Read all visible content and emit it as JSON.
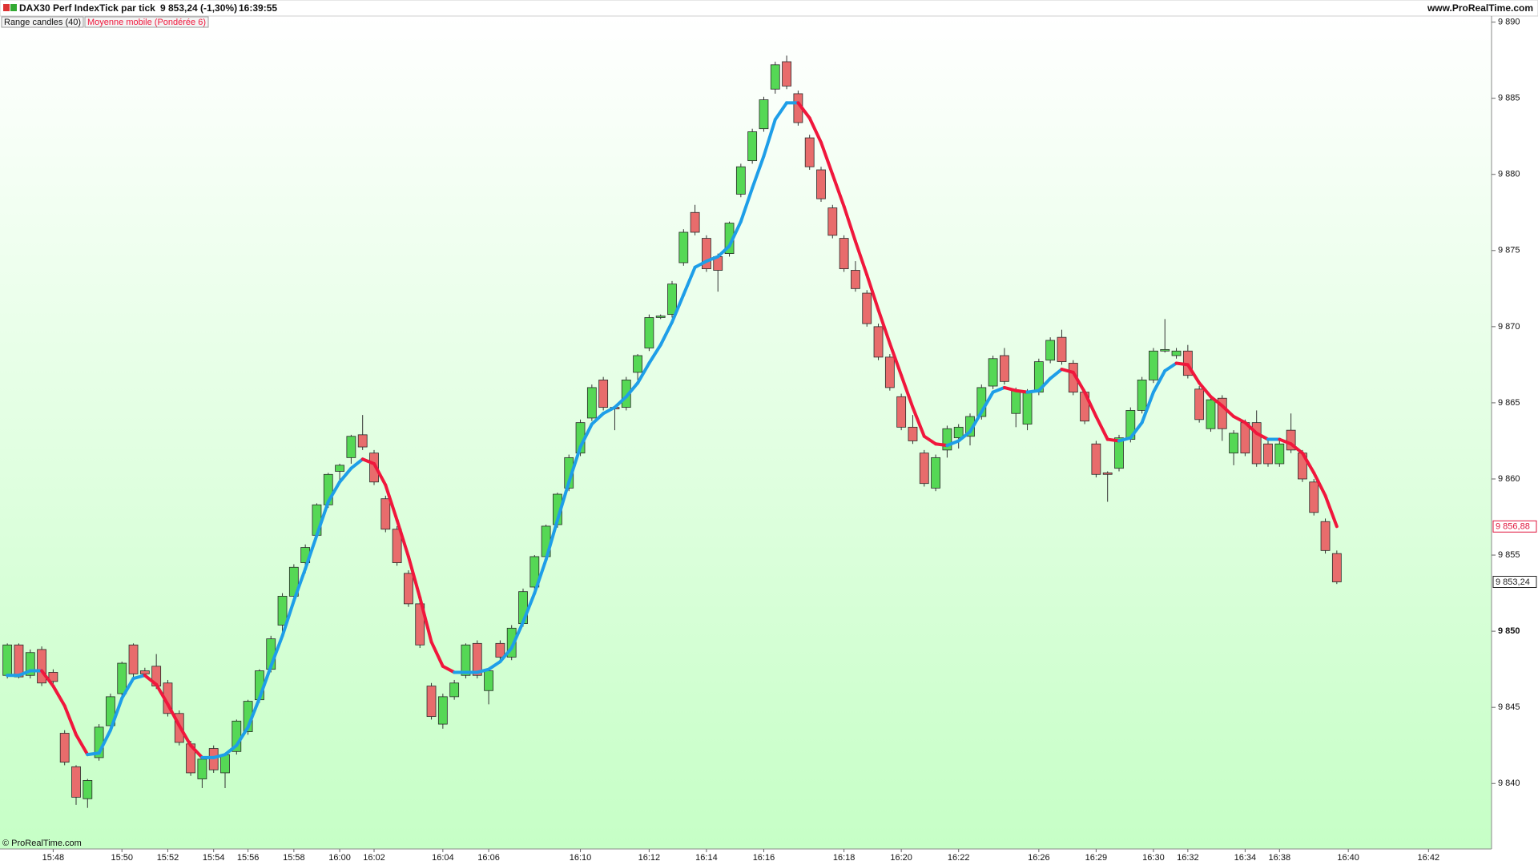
{
  "chart_data": {
    "type": "candlestick",
    "title": "DAX30 Perf Index",
    "subtitle": "Tick par tick",
    "quote": "9 853,24 (-1,30%)",
    "time": "16:39:55",
    "source": "www.ProRealTime.com",
    "copyright": "© ProRealTime.com",
    "categories": [
      null,
      null,
      null,
      null,
      "15:48",
      null,
      null,
      null,
      null,
      null,
      "15:50",
      null,
      null,
      null,
      "15:52",
      null,
      null,
      null,
      "15:54",
      null,
      null,
      "15:56",
      null,
      null,
      null,
      "15:58",
      null,
      null,
      null,
      "16:00",
      null,
      null,
      "16:02",
      null,
      null,
      null,
      null,
      null,
      "16:04",
      null,
      null,
      null,
      "16:06",
      null,
      null,
      null,
      null,
      null,
      null,
      null,
      "16:10",
      null,
      null,
      null,
      null,
      null,
      "16:12",
      null,
      null,
      null,
      null,
      "16:14",
      null,
      null,
      null,
      null,
      "16:16",
      null,
      null,
      null,
      null,
      null,
      null,
      "16:18",
      null,
      null,
      null,
      null,
      "16:20",
      null,
      null,
      null,
      null,
      "16:22",
      null,
      null,
      null,
      null,
      null,
      null,
      "16:26",
      null,
      null,
      null,
      null,
      "16:29",
      null,
      null,
      null,
      null,
      "16:30",
      null,
      null,
      "16:32",
      null,
      null,
      null,
      null,
      "16:34",
      null,
      null,
      "16:38",
      null,
      null,
      null,
      null,
      null,
      "16:40",
      null,
      null,
      null,
      null,
      null,
      null,
      "16:42",
      null,
      null,
      null,
      null,
      null
    ],
    "series": [
      {
        "name": "Range candles (40)",
        "type": "candlestick",
        "up_color": "#55d855",
        "down_color": "#e86c6c",
        "open": [
          9847.1,
          9849.1,
          9847.1,
          9848.8,
          9847.3,
          9843.3,
          9841.1,
          9839.0,
          9841.7,
          9843.8,
          9845.9,
          9849.1,
          9847.4,
          9847.7,
          9846.6,
          9844.6,
          9842.6,
          9840.3,
          9842.3,
          9840.7,
          9842.1,
          9843.4,
          9845.5,
          9847.5,
          9850.4,
          9852.3,
          9854.5,
          9856.3,
          9858.3,
          9860.5,
          9861.4,
          9862.9,
          9861.7,
          9858.7,
          9856.7,
          9853.8,
          9851.8,
          9846.4,
          9843.9,
          9845.7,
          9847.1,
          9849.2,
          9846.1,
          9849.2,
          9848.3,
          9850.5,
          9852.9,
          9854.9,
          9857.0,
          9859.4,
          9861.7,
          9864.0,
          9866.5,
          9864.7,
          9864.7,
          9867.0,
          9868.6,
          9870.6,
          9870.8,
          9874.2,
          9877.5,
          9875.8,
          9874.6,
          9874.8,
          9878.7,
          9880.9,
          9883.0,
          9885.6,
          9887.4,
          9885.3,
          9882.4,
          9880.3,
          9877.8,
          9875.8,
          9873.7,
          9872.2,
          9870.0,
          9868.0,
          9865.4,
          9863.4,
          9861.7,
          9859.4,
          9861.9,
          9862.7,
          9862.8,
          9864.1,
          9866.1,
          9868.1,
          9864.3,
          9863.6,
          9865.7,
          9867.8,
          9869.3,
          9867.6,
          9865.7,
          9862.3,
          9860.4,
          9860.7,
          9862.6,
          9864.5,
          9866.5,
          9868.4,
          9868.1,
          9868.4,
          9865.9,
          9863.3,
          9865.3,
          9861.7,
          9863.7,
          9863.7,
          9862.3,
          9861.0,
          9863.2,
          9861.7,
          9859.8,
          9857.2,
          9855.1,
          null,
          null,
          null,
          null,
          null,
          null,
          null,
          null,
          null,
          null,
          null,
          null,
          null
        ],
        "high": [
          9849.2,
          9849.2,
          9848.8,
          9849.0,
          9847.5,
          9843.5,
          9841.2,
          9840.3,
          9843.9,
          9845.9,
          9848.0,
          9849.2,
          9847.6,
          9848.5,
          9846.8,
          9844.8,
          9842.8,
          9841.8,
          9842.5,
          9842.0,
          9844.2,
          9845.5,
          9847.5,
          9849.7,
          9852.5,
          9854.4,
          9855.7,
          9858.4,
          9860.4,
          9861.0,
          9862.9,
          9864.2,
          9861.9,
          9858.9,
          9856.9,
          9854.0,
          9852.0,
          9846.6,
          9845.9,
          9846.8,
          9849.2,
          9849.4,
          9847.5,
          9849.4,
          9850.4,
          9852.8,
          9855.0,
          9857.0,
          9859.1,
          9861.6,
          9863.9,
          9866.2,
          9866.7,
          9864.8,
          9866.7,
          9868.2,
          9870.8,
          9870.8,
          9873.0,
          9876.4,
          9878.0,
          9876.0,
          9874.8,
          9876.9,
          9880.7,
          9883.0,
          9885.1,
          9887.4,
          9887.8,
          9885.5,
          9882.6,
          9880.5,
          9878.0,
          9876.0,
          9874.3,
          9872.4,
          9870.2,
          9868.2,
          9865.6,
          9864.2,
          9861.9,
          9861.6,
          9863.5,
          9863.6,
          9864.3,
          9866.2,
          9868.1,
          9868.6,
          9866.0,
          9865.9,
          9867.9,
          9869.3,
          9869.8,
          9867.8,
          9865.9,
          9862.5,
          9860.5,
          9862.9,
          9864.7,
          9866.7,
          9868.6,
          9870.5,
          9868.6,
          9868.8,
          9866.1,
          9865.4,
          9865.5,
          9863.2,
          9863.9,
          9864.5,
          9862.5,
          9862.5,
          9864.3,
          9861.9,
          9860.0,
          9857.4,
          9855.3,
          null,
          null,
          null,
          null,
          null,
          null,
          null,
          null,
          null,
          null,
          null,
          null,
          null
        ],
        "low": [
          9846.9,
          9846.9,
          9846.9,
          9846.4,
          9846.3,
          9841.2,
          9838.6,
          9838.4,
          9841.5,
          9843.6,
          9845.7,
          9847.0,
          9847.0,
          9846.2,
          9844.4,
          9842.5,
          9840.5,
          9839.7,
          9840.7,
          9839.7,
          9841.9,
          9843.2,
          9845.3,
          9847.3,
          9849.8,
          9852.1,
          9853.8,
          9856.1,
          9858.1,
          9859.8,
          9861.0,
          9861.9,
          9859.6,
          9856.5,
          9854.3,
          9851.6,
          9848.9,
          9844.2,
          9843.6,
          9845.5,
          9846.9,
          9846.9,
          9845.2,
          9848.1,
          9848.1,
          9850.3,
          9852.7,
          9854.7,
          9856.8,
          9859.2,
          9861.5,
          9863.8,
          9864.5,
          9863.2,
          9864.5,
          9866.5,
          9868.4,
          9870.5,
          9870.6,
          9874.0,
          9876.0,
          9873.6,
          9872.3,
          9874.6,
          9878.5,
          9880.7,
          9882.8,
          9885.3,
          9885.6,
          9883.2,
          9880.3,
          9878.2,
          9875.8,
          9873.6,
          9872.3,
          9870.0,
          9867.8,
          9865.8,
          9863.2,
          9862.3,
          9859.5,
          9859.2,
          9861.4,
          9862.0,
          9862.2,
          9863.9,
          9865.9,
          9866.2,
          9863.4,
          9863.2,
          9865.5,
          9867.6,
          9867.5,
          9865.5,
          9863.6,
          9860.1,
          9858.5,
          9860.5,
          9862.4,
          9864.3,
          9866.3,
          9868.3,
          9867.9,
          9866.6,
          9863.7,
          9863.1,
          9862.5,
          9860.9,
          9861.5,
          9860.8,
          9860.8,
          9860.8,
          9861.7,
          9859.8,
          9857.6,
          9855.1,
          9853.1,
          null,
          null,
          null,
          null,
          null,
          null,
          null,
          null,
          null,
          null,
          null,
          null,
          null
        ],
        "close": [
          9849.1,
          9847.0,
          9848.6,
          9846.6,
          9846.7,
          9841.4,
          9839.1,
          9840.2,
          9843.7,
          9845.7,
          9847.9,
          9847.2,
          9847.2,
          9846.4,
          9844.6,
          9842.7,
          9840.7,
          9841.6,
          9840.9,
          9841.9,
          9844.1,
          9845.4,
          9847.4,
          9849.5,
          9852.3,
          9854.2,
          9855.5,
          9858.3,
          9860.3,
          9860.9,
          9862.8,
          9862.1,
          9859.8,
          9856.7,
          9854.5,
          9851.8,
          9849.1,
          9844.4,
          9845.7,
          9846.6,
          9849.1,
          9847.1,
          9847.4,
          9848.3,
          9850.2,
          9852.6,
          9854.9,
          9856.9,
          9859.0,
          9861.4,
          9863.7,
          9866.0,
          9864.7,
          9864.6,
          9866.5,
          9868.1,
          9870.6,
          9870.7,
          9872.8,
          9876.2,
          9876.2,
          9873.8,
          9873.7,
          9876.8,
          9880.5,
          9882.8,
          9884.9,
          9887.2,
          9885.8,
          9883.4,
          9880.5,
          9878.4,
          9876.0,
          9873.8,
          9872.5,
          9870.2,
          9868.0,
          9866.0,
          9863.4,
          9862.5,
          9859.7,
          9861.4,
          9863.3,
          9863.4,
          9864.1,
          9866.0,
          9867.9,
          9866.4,
          9865.8,
          9865.7,
          9867.7,
          9869.1,
          9867.7,
          9865.7,
          9863.8,
          9860.3,
          9860.3,
          9862.7,
          9864.5,
          9866.5,
          9868.4,
          9868.5,
          9868.4,
          9866.8,
          9863.9,
          9865.2,
          9863.3,
          9863.0,
          9861.7,
          9861.0,
          9861.0,
          9862.3,
          9861.9,
          9860.0,
          9857.8,
          9855.3,
          9853.24,
          null,
          null,
          null,
          null,
          null,
          null,
          null,
          null,
          null,
          null,
          null,
          null,
          null
        ]
      },
      {
        "name": "Moyenne mobile (Pondérée 6)",
        "type": "line",
        "up_color": "#1e9ee8",
        "down_color": "#f0173c",
        "values": [
          9847.1,
          9847.1,
          9847.4,
          9847.4,
          9846.4,
          9845.1,
          9843.2,
          9841.9,
          9842.0,
          9843.5,
          9845.6,
          9846.9,
          9847.1,
          9846.5,
          9845.2,
          9843.8,
          9842.5,
          9841.7,
          9841.7,
          9841.9,
          9842.5,
          9843.7,
          9845.6,
          9847.7,
          9849.7,
          9852.0,
          9854.1,
          9856.3,
          9858.5,
          9859.8,
          9860.7,
          9861.3,
          9861.0,
          9859.6,
          9857.3,
          9854.9,
          9852.2,
          9849.3,
          9847.7,
          9847.3,
          9847.3,
          9847.3,
          9847.5,
          9848.0,
          9848.9,
          9850.6,
          9852.5,
          9854.7,
          9857.3,
          9859.8,
          9862.1,
          9863.6,
          9864.3,
          9864.7,
          9865.4,
          9866.3,
          9867.6,
          9868.8,
          9870.3,
          9872.1,
          9873.9,
          9874.3,
          9874.6,
          9875.3,
          9876.9,
          9879.1,
          9881.2,
          9883.6,
          9884.7,
          9884.7,
          9883.7,
          9882.1,
          9880.0,
          9877.9,
          9875.6,
          9873.4,
          9871.1,
          9868.9,
          9866.8,
          9864.7,
          9862.8,
          9862.3,
          9862.2,
          9862.5,
          9863.1,
          9864.4,
          9865.7,
          9866.0,
          9865.8,
          9865.7,
          9865.8,
          9866.6,
          9867.2,
          9867.0,
          9865.7,
          9864.1,
          9862.6,
          9862.5,
          9862.7,
          9863.7,
          9865.7,
          9867.1,
          9867.6,
          9867.5,
          9866.3,
          9865.4,
          9864.8,
          9864.1,
          9863.7,
          9863.0,
          9862.6,
          9862.6,
          9862.3,
          9861.7,
          9860.4,
          9858.9,
          9856.88,
          null,
          null,
          null,
          null,
          null,
          null,
          null,
          null,
          null,
          null,
          null,
          null,
          null
        ]
      }
    ],
    "ylim": [
      9835.7,
      9890.4
    ],
    "yticks": [
      {
        "value": 9840,
        "label": "9 840"
      },
      {
        "value": 9845,
        "label": "9 845"
      },
      {
        "value": 9850,
        "label": "9 850"
      },
      {
        "value": 9855,
        "label": "9 855"
      },
      {
        "value": 9860,
        "label": "9 860"
      },
      {
        "value": 9865,
        "label": "9 865"
      },
      {
        "value": 9870,
        "label": "9 870"
      },
      {
        "value": 9875,
        "label": "9 875"
      },
      {
        "value": 9880,
        "label": "9 880"
      },
      {
        "value": 9885,
        "label": "9 885"
      },
      {
        "value": 9890,
        "label": "9 890"
      }
    ],
    "markers": [
      {
        "value": 9856.88,
        "label": "9 856,88",
        "color": "#e0143c"
      },
      {
        "value": 9853.24,
        "label": "9 853,24",
        "color": "#222222"
      }
    ]
  }
}
